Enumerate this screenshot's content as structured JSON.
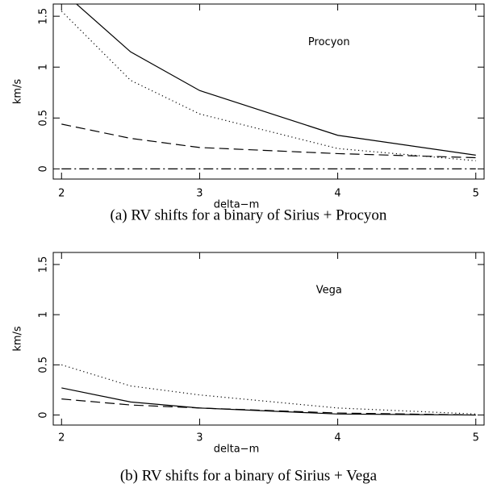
{
  "chart_data": [
    {
      "type": "line",
      "title": "Procyon",
      "caption": "(a) RV shifts for a binary of Sirius + Procyon",
      "xlabel": "delta−m",
      "ylabel": "km/s",
      "x": [
        2,
        2.5,
        3,
        4,
        5
      ],
      "series": [
        {
          "color": "#000000",
          "dash": "solid",
          "values": [
            1.75,
            1.15,
            0.77,
            0.33,
            0.135
          ]
        },
        {
          "color": "#000000",
          "dash": "dotted",
          "values": [
            1.55,
            0.87,
            0.54,
            0.2,
            0.08
          ]
        },
        {
          "color": "#000000",
          "dash": "dashed",
          "values": [
            0.44,
            0.3,
            0.21,
            0.15,
            0.11
          ]
        },
        {
          "color": "#000000",
          "dash": "dashdot",
          "values": [
            0,
            0,
            0,
            0,
            0
          ]
        }
      ],
      "xlim": [
        1.94,
        5.06
      ],
      "ylim": [
        -0.1,
        1.62
      ],
      "xticks": [
        2,
        3,
        4,
        5
      ],
      "yticks": [
        0,
        0.5,
        1,
        1.5
      ]
    },
    {
      "type": "line",
      "title": "Vega",
      "caption": "(b) RV shifts for a binary of Sirius + Vega",
      "xlabel": "delta−m",
      "ylabel": "km/s",
      "x": [
        2,
        2.5,
        3,
        4,
        5
      ],
      "series": [
        {
          "color": "#000000",
          "dash": "solid",
          "values": [
            0.27,
            0.13,
            0.07,
            0.01,
            0
          ]
        },
        {
          "color": "#000000",
          "dash": "dotted",
          "values": [
            0.5,
            0.29,
            0.2,
            0.07,
            0.01
          ]
        },
        {
          "color": "#000000",
          "dash": "dashed",
          "values": [
            0.16,
            0.1,
            0.07,
            0.02,
            0
          ]
        }
      ],
      "xlim": [
        1.94,
        5.06
      ],
      "ylim": [
        -0.1,
        1.62
      ],
      "xticks": [
        2,
        3,
        4,
        5
      ],
      "yticks": [
        0,
        0.5,
        1,
        1.5
      ]
    }
  ]
}
